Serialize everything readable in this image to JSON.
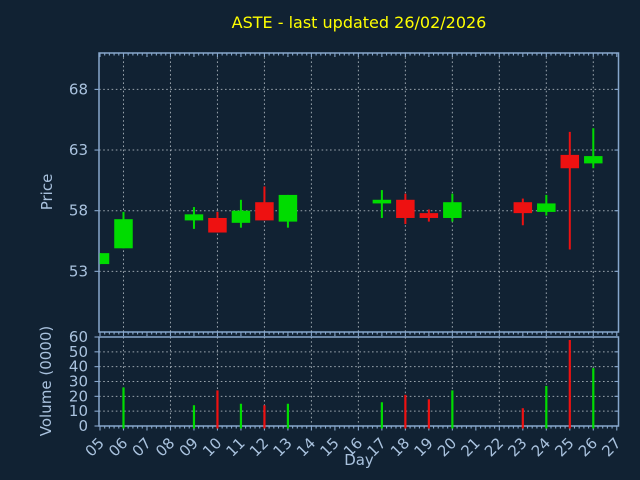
{
  "chart_data": {
    "type": "candlestick",
    "title": "ASTE - last updated 26/02/2026",
    "x_axis": {
      "label": "Day",
      "tick_labels": [
        "05",
        "06",
        "07",
        "08",
        "09",
        "10",
        "11",
        "12",
        "13",
        "14",
        "15",
        "16",
        "17",
        "18",
        "19",
        "20",
        "21",
        "22",
        "23",
        "24",
        "25",
        "26",
        "27"
      ],
      "tick_days": [
        5,
        6,
        7,
        8,
        9,
        10,
        11,
        12,
        13,
        14,
        15,
        16,
        17,
        18,
        19,
        20,
        21,
        22,
        23,
        24,
        25,
        26,
        27
      ]
    },
    "price_axis": {
      "label": "Price",
      "ticks": [
        53,
        58,
        63,
        68
      ],
      "ylim": [
        48,
        71
      ]
    },
    "volume_axis": {
      "label": "Volume (0000)",
      "ticks": [
        0,
        10,
        20,
        30,
        40,
        50,
        60
      ],
      "ylim": [
        0,
        60
      ]
    },
    "grid_days": [
      6,
      8,
      10,
      12,
      14,
      16,
      18,
      20,
      22,
      24,
      26
    ],
    "candles": [
      {
        "day": 5,
        "open": 53.6,
        "high": 54.5,
        "low": 53.6,
        "close": 54.5,
        "volume": 0
      },
      {
        "day": 6,
        "open": 54.9,
        "high": 57.9,
        "low": 54.9,
        "close": 57.3,
        "volume": 26
      },
      {
        "day": 9,
        "open": 57.2,
        "high": 58.3,
        "low": 56.5,
        "close": 57.7,
        "volume": 14
      },
      {
        "day": 10,
        "open": 57.4,
        "high": 57.9,
        "low": 56.2,
        "close": 56.2,
        "volume": 24
      },
      {
        "day": 11,
        "open": 57.0,
        "high": 58.9,
        "low": 56.6,
        "close": 58.0,
        "volume": 15
      },
      {
        "day": 12,
        "open": 58.7,
        "high": 60.0,
        "low": 57.2,
        "close": 57.2,
        "volume": 14
      },
      {
        "day": 13,
        "open": 57.1,
        "high": 59.3,
        "low": 56.6,
        "close": 59.3,
        "volume": 15
      },
      {
        "day": 17,
        "open": 58.6,
        "high": 59.7,
        "low": 57.4,
        "close": 58.9,
        "volume": 16
      },
      {
        "day": 18,
        "open": 58.9,
        "high": 59.4,
        "low": 56.9,
        "close": 57.4,
        "volume": 21
      },
      {
        "day": 19,
        "open": 57.8,
        "high": 58.1,
        "low": 57.1,
        "close": 57.4,
        "volume": 18
      },
      {
        "day": 20,
        "open": 57.4,
        "high": 59.4,
        "low": 57.1,
        "close": 58.7,
        "volume": 24
      },
      {
        "day": 23,
        "open": 58.7,
        "high": 59.0,
        "low": 56.8,
        "close": 57.8,
        "volume": 12
      },
      {
        "day": 24,
        "open": 57.9,
        "high": 59.3,
        "low": 57.6,
        "close": 58.6,
        "volume": 27
      },
      {
        "day": 25,
        "open": 62.6,
        "high": 64.5,
        "low": 54.8,
        "close": 61.5,
        "volume": 58
      },
      {
        "day": 26,
        "open": 61.9,
        "high": 64.8,
        "low": 61.5,
        "close": 62.5,
        "volume": 39
      }
    ],
    "colors": {
      "up": "#00dc00",
      "down": "#ee1111",
      "background": "#112233",
      "title": "#ffff00",
      "labels": "#a9c2de",
      "spine": "#87a7cc",
      "grid": "#a8b2ba"
    }
  }
}
